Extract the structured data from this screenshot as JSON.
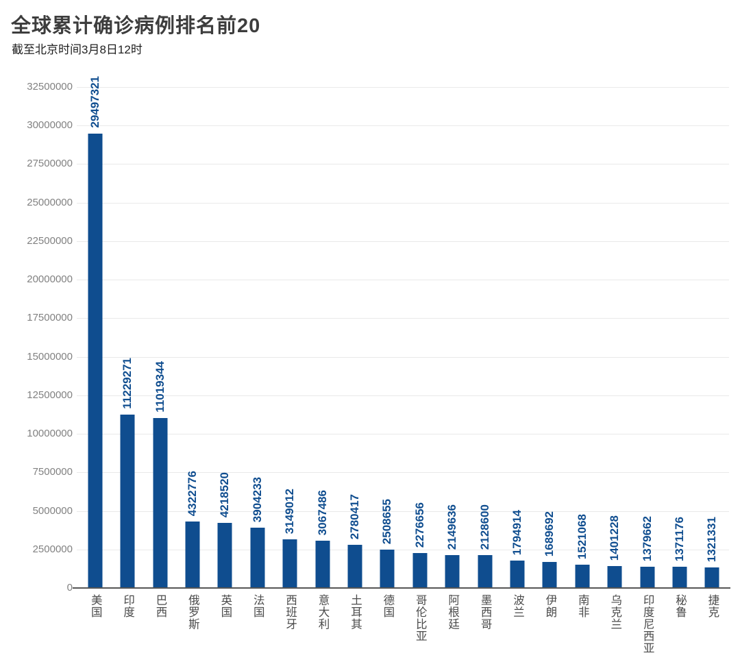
{
  "header": {
    "title": "全球累计确诊病例排名前20",
    "subtitle": "截至北京时间3月8日12时"
  },
  "chart_data": {
    "type": "bar",
    "title": "全球累计确诊病例排名前20",
    "subtitle": "截至北京时间3月8日12时",
    "categories": [
      "美国",
      "印度",
      "巴西",
      "俄罗斯",
      "英国",
      "法国",
      "西班牙",
      "意大利",
      "土耳其",
      "德国",
      "哥伦比亚",
      "阿根廷",
      "墨西哥",
      "波兰",
      "伊朗",
      "南非",
      "乌克兰",
      "印度尼西亚",
      "秘鲁",
      "捷克"
    ],
    "values": [
      29497321,
      11229271,
      11019344,
      4322776,
      4218520,
      3904233,
      3149012,
      3067486,
      2780417,
      2508655,
      2276656,
      2149636,
      2128600,
      1794914,
      1689692,
      1521068,
      1401228,
      1379662,
      1371176,
      1321331
    ],
    "xlabel": "",
    "ylabel": "",
    "ylim": [
      0,
      32500000
    ],
    "yticks": [
      0,
      2500000,
      5000000,
      7500000,
      10000000,
      12500000,
      15000000,
      17500000,
      20000000,
      22500000,
      25000000,
      27500000,
      30000000,
      32500000
    ],
    "grid": true,
    "legend_position": "none",
    "bar_color": "#0f4d8f",
    "value_label_color": "#0f4d8f",
    "bar_value_labels_rotated": true,
    "category_labels_vertical": true
  }
}
